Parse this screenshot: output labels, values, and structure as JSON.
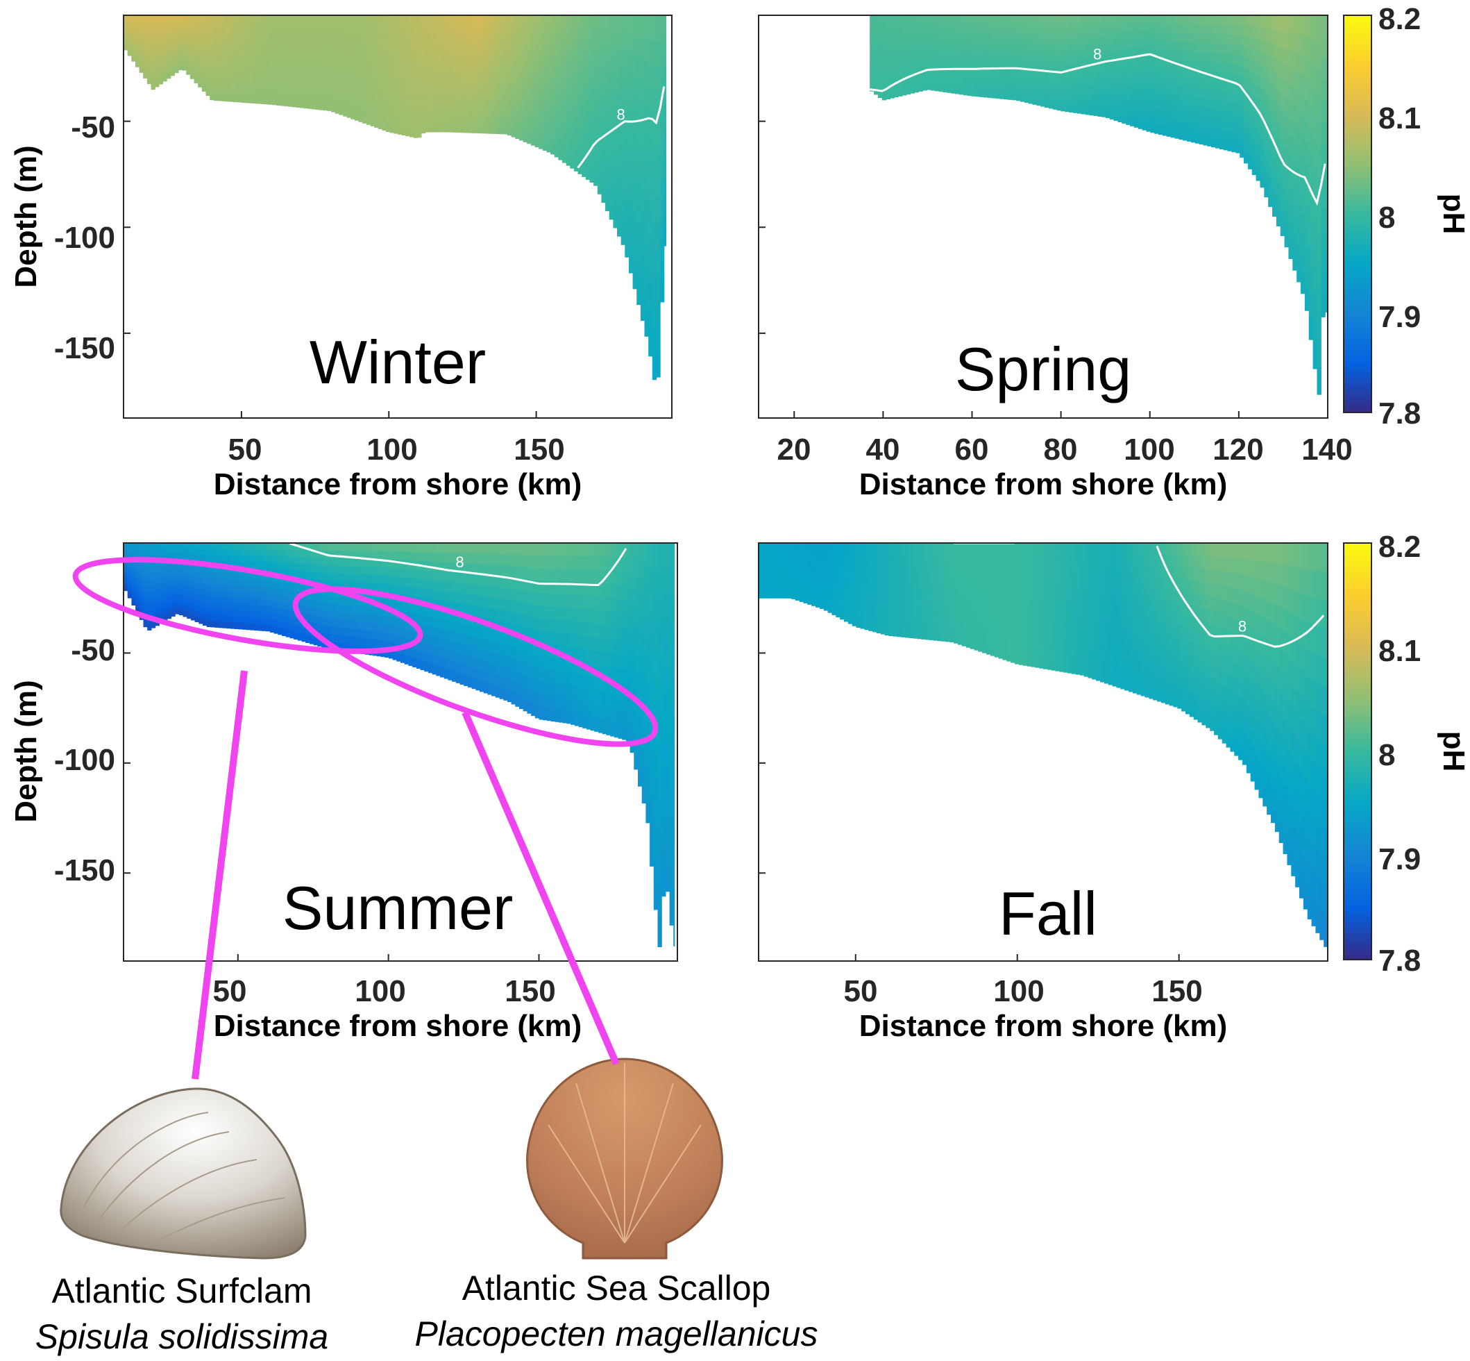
{
  "chart_data": [
    {
      "type": "heatmap",
      "panel": "winter",
      "title": "Winter",
      "xlabel": "Distance from shore (km)",
      "ylabel": "Depth (m)",
      "xlim": [
        10,
        196
      ],
      "ylim": [
        -190,
        0
      ],
      "xticks": [
        50,
        100,
        150
      ],
      "yticks": [
        -50,
        -100,
        -150
      ],
      "color_variable": "pH",
      "contour_label": "8",
      "bottom_profile": {
        "x": [
          10,
          20,
          30,
          40,
          60,
          80,
          100,
          110,
          112,
          120,
          140,
          155,
          170,
          180,
          188,
          191,
          194
        ],
        "y": [
          -15,
          -35,
          -25,
          -40,
          -42,
          -45,
          -55,
          -58,
          -55,
          -55,
          -56,
          -65,
          -80,
          -110,
          -155,
          -180,
          -100
        ]
      },
      "ph_by_distance": {
        "x": [
          10,
          30,
          60,
          90,
          110,
          130,
          150,
          170,
          190
        ],
        "surface": [
          8.1,
          8.1,
          8.06,
          8.06,
          8.08,
          8.1,
          8.06,
          8.03,
          8.02
        ],
        "bottom": [
          8.06,
          8.05,
          8.05,
          8.05,
          8.06,
          8.05,
          8.02,
          7.99,
          7.95
        ]
      }
    },
    {
      "type": "heatmap",
      "panel": "spring",
      "title": "Spring",
      "xlabel": "Distance from shore (km)",
      "ylabel": "",
      "xlim": [
        12,
        140
      ],
      "ylim": [
        -190,
        0
      ],
      "xticks": [
        20,
        40,
        60,
        80,
        100,
        120,
        140
      ],
      "yticks": [
        -50,
        -100,
        -150
      ],
      "color_variable": "pH",
      "contour_label": "8",
      "bottom_profile": {
        "x": [
          37,
          40,
          50,
          60,
          70,
          80,
          90,
          100,
          110,
          120,
          125,
          130,
          135,
          138,
          139,
          140
        ],
        "y": [
          -35,
          -40,
          -35,
          -38,
          -40,
          -45,
          -48,
          -55,
          -60,
          -65,
          -80,
          -105,
          -135,
          -180,
          -140,
          -140
        ]
      },
      "ph_by_distance": {
        "x": [
          37,
          60,
          80,
          100,
          120,
          130,
          138
        ],
        "surface": [
          8.01,
          8.02,
          8.03,
          8.02,
          8.04,
          8.06,
          8.04
        ],
        "bottom": [
          8.0,
          7.99,
          7.98,
          7.96,
          7.96,
          7.97,
          7.96
        ]
      }
    },
    {
      "type": "heatmap",
      "panel": "summer",
      "title": "Summer",
      "xlabel": "Distance from shore (km)",
      "ylabel": "Depth (m)",
      "xlim": [
        12,
        196
      ],
      "ylim": [
        -190,
        0
      ],
      "xticks": [
        50,
        100,
        150
      ],
      "yticks": [
        -50,
        -100,
        -150
      ],
      "color_variable": "pH",
      "contour_label": "8",
      "bottom_profile": {
        "x": [
          12,
          20,
          30,
          40,
          60,
          80,
          100,
          120,
          140,
          150,
          160,
          170,
          180,
          186,
          190,
          192,
          195
        ],
        "y": [
          -20,
          -40,
          -32,
          -38,
          -40,
          -48,
          -52,
          -62,
          -72,
          -80,
          -82,
          -86,
          -90,
          -125,
          -185,
          -150,
          -185
        ]
      },
      "ph_by_distance": {
        "x": [
          12,
          40,
          80,
          120,
          150,
          170,
          190
        ],
        "surface": [
          7.93,
          7.96,
          8.02,
          8.03,
          8.03,
          8.02,
          7.98
        ],
        "bottom": [
          7.83,
          7.83,
          7.85,
          7.88,
          7.9,
          7.93,
          7.92
        ]
      },
      "annotations": [
        {
          "label": "Atlantic Surfclam",
          "species": "Spisula solidissima",
          "x_range": [
            12,
            115
          ],
          "depth_range": [
            -15,
            -60
          ]
        },
        {
          "label": "Atlantic Sea Scallop",
          "species": "Placopecten magellanicus",
          "x_range": [
            70,
            192
          ],
          "depth_range": [
            -25,
            -90
          ]
        }
      ]
    },
    {
      "type": "heatmap",
      "panel": "fall",
      "title": "Fall",
      "xlabel": "Distance from shore (km)",
      "ylabel": "",
      "xlim": [
        20,
        196
      ],
      "ylim": [
        -190,
        0
      ],
      "xticks": [
        50,
        100,
        150
      ],
      "yticks": [
        -50,
        -100,
        -150
      ],
      "color_variable": "pH",
      "contour_label": "8",
      "bottom_profile": {
        "x": [
          20,
          30,
          40,
          50,
          60,
          80,
          100,
          120,
          140,
          150,
          160,
          170,
          180,
          190,
          196
        ],
        "y": [
          -25,
          -25,
          -30,
          -38,
          -42,
          -45,
          -55,
          -60,
          -70,
          -75,
          -85,
          -100,
          -130,
          -170,
          -185
        ]
      },
      "ph_by_distance": {
        "x": [
          20,
          40,
          60,
          80,
          100,
          130,
          160,
          180,
          196
        ],
        "surface": [
          7.95,
          7.94,
          7.97,
          8.0,
          8.0,
          7.97,
          8.04,
          8.04,
          8.02
        ],
        "bottom": [
          7.95,
          7.95,
          7.97,
          7.99,
          8.0,
          7.96,
          7.96,
          7.93,
          7.9
        ]
      }
    }
  ],
  "colorbar": {
    "label": "pH",
    "min": 7.8,
    "max": 8.2,
    "ticks": [
      "8.2",
      "8.1",
      "8",
      "7.9",
      "7.8"
    ]
  },
  "species": [
    {
      "name": "Atlantic Surfclam",
      "latin": "Spisula solidissima"
    },
    {
      "name": "Atlantic Sea Scallop",
      "latin": "Placopecten magellanicus"
    }
  ],
  "colors": {
    "annotation": "#f044f0",
    "contour": "#ffffff",
    "colormap": [
      "#352a87",
      "#0363e1",
      "#1485d4",
      "#06a7c6",
      "#38b99e",
      "#92bf73",
      "#d9ba56",
      "#fcce2e",
      "#f9fb0e"
    ]
  }
}
